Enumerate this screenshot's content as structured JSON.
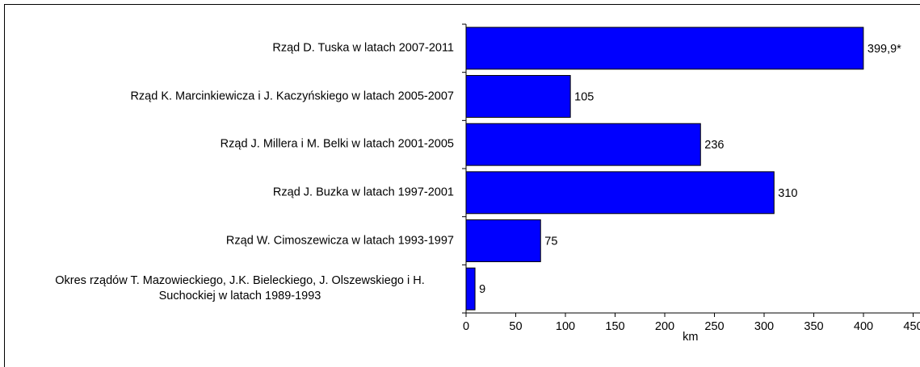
{
  "chart_data": {
    "type": "bar",
    "orientation": "horizontal",
    "categories": [
      "Rząd D. Tuska w latach 2007-2011",
      "Rząd K. Marcinkiewicza i J. Kaczyńskiego w latach 2005-2007",
      "Rząd J. Millera i M. Belki w latach 2001-2005",
      "Rząd J. Buzka w latach 1997-2001",
      "Rząd W. Cimoszewicza w latach 1993-1997",
      "Okres rządów T. Mazowieckiego, J.K. Bieleckiego, J. Olszewskiego i H. Suchockiej w latach 1989-1993"
    ],
    "values": [
      399.9,
      105,
      236,
      310,
      75,
      9
    ],
    "value_labels": [
      "399,9*",
      "105",
      "236",
      "310",
      "75",
      "9"
    ],
    "color": "#0000ff",
    "xlabel": "km",
    "xlim": [
      0,
      450
    ],
    "xticks": [
      0,
      50,
      100,
      150,
      200,
      250,
      300,
      350,
      400,
      450
    ]
  }
}
